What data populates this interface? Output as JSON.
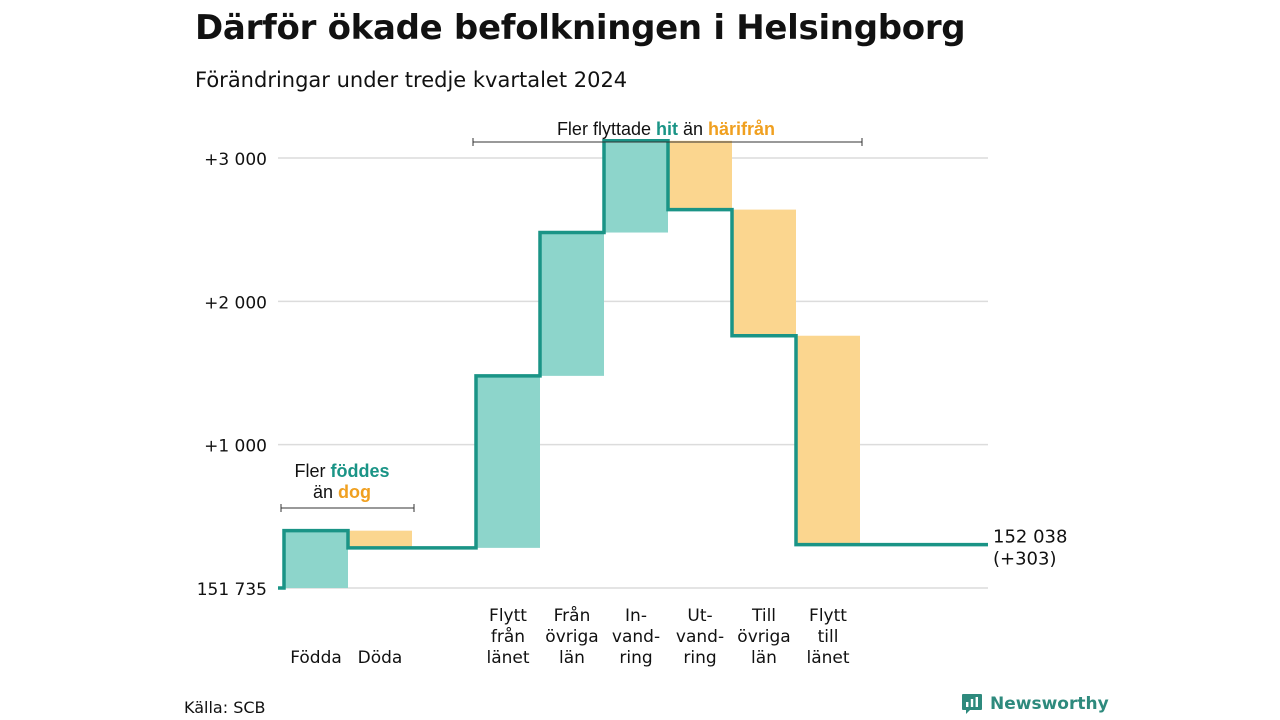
{
  "title": "Därför ökade befolkningen i Helsingborg",
  "subtitle": "Förändringar under tredje kvartalet 2024",
  "source": "Källa: SCB",
  "brand": "Newsworthy",
  "colors": {
    "positive": "#8dd5cb",
    "negative": "#fbd68f",
    "line": "#1a9486",
    "hit": "#1a9486",
    "harifran": "#f0a020",
    "grid": "#dcdcdc"
  },
  "annotations": {
    "births": {
      "prefix": "Fler ",
      "hit": "föddes",
      "line2_prefix": "än ",
      "from": "dog"
    },
    "moves": {
      "prefix": "Fler flyttade ",
      "hit": "hit",
      "mid": " än ",
      "from": "härifrån"
    }
  },
  "chart_data": {
    "type": "waterfall",
    "title": "Därför ökade befolkningen i Helsingborg",
    "subtitle": "Förändringar under tredje kvartalet 2024",
    "baseline": 151735,
    "baseline_label": "151 735",
    "y_ticks": [
      {
        "value": 1000,
        "label": "+1 000"
      },
      {
        "value": 2000,
        "label": "+2 000"
      },
      {
        "value": 3000,
        "label": "+3 000"
      }
    ],
    "ylim": [
      0,
      3000
    ],
    "grid": true,
    "steps": [
      {
        "label": [
          "Födda"
        ],
        "change": 400
      },
      {
        "label": [
          "Döda"
        ],
        "change": -120
      },
      {
        "label": [
          "Flytt",
          "från",
          "länet"
        ],
        "change": 1200
      },
      {
        "label": [
          "Från",
          "övriga",
          "län"
        ],
        "change": 1000
      },
      {
        "label": [
          "In-",
          "vand-",
          "ring"
        ],
        "change": 640
      },
      {
        "label": [
          "Ut-",
          "vand-",
          "ring"
        ],
        "change": -480
      },
      {
        "label": [
          "Till",
          "övriga",
          "län"
        ],
        "change": -880
      },
      {
        "label": [
          "Flytt",
          "till",
          "länet"
        ],
        "change": -1457
      }
    ],
    "end_label": "152 038",
    "end_change_label": "(+303)"
  }
}
